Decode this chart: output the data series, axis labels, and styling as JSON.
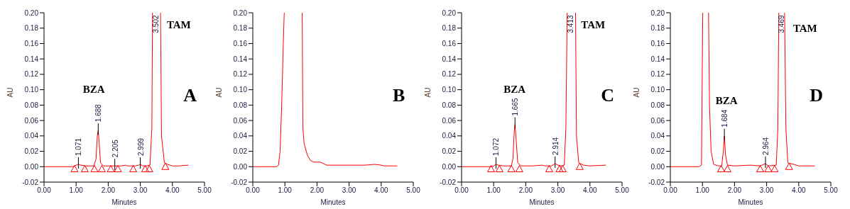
{
  "chart_data": [
    {
      "type": "line",
      "xlabel": "Minutes",
      "ylabel": "AU",
      "xlim": [
        0,
        5
      ],
      "ylim": [
        -0.02,
        0.2
      ],
      "xticks": [
        {
          "value": 0,
          "label": "0.00"
        },
        {
          "value": 1,
          "label": "1.00"
        },
        {
          "value": 2,
          "label": "2.00"
        },
        {
          "value": 3,
          "label": "3.00"
        },
        {
          "value": 4,
          "label": "4.00"
        },
        {
          "value": 5,
          "label": "5.00"
        }
      ],
      "yticks": [
        {
          "value": -0.02,
          "label": "-0.02"
        },
        {
          "value": 0,
          "label": "0.00"
        },
        {
          "value": 0.02,
          "label": "0.02"
        },
        {
          "value": 0.04,
          "label": "0.04"
        },
        {
          "value": 0.06,
          "label": "0.06"
        },
        {
          "value": 0.08,
          "label": "0.08"
        },
        {
          "value": 0.1,
          "label": "0.10"
        },
        {
          "value": 0.12,
          "label": "0.12"
        },
        {
          "value": 0.14,
          "label": "0.14"
        },
        {
          "value": 0.16,
          "label": "0.16"
        },
        {
          "value": 0.18,
          "label": "0.18"
        },
        {
          "value": 0.2,
          "label": "0.20"
        }
      ],
      "grid": false,
      "line_style": "solid",
      "marker": "none",
      "series": [
        {
          "color": "#ff0000",
          "x": [
            0,
            0.9,
            1.0,
            1.071,
            1.15,
            1.3,
            1.55,
            1.62,
            1.66,
            1.688,
            1.72,
            1.76,
            1.85,
            2.0,
            2.205,
            2.4,
            2.55,
            2.6,
            2.7,
            2.85,
            2.95,
            2.999,
            3.08,
            3.2,
            3.3,
            3.36,
            3.38,
            3.502,
            3.63,
            3.66,
            3.75,
            3.85,
            4.0,
            4.2,
            4.5
          ],
          "values": [
            0,
            0,
            0.002,
            0.003,
            0.002,
            0.001,
            0.001,
            0.01,
            0.04,
            0.047,
            0.03,
            0.005,
            0.001,
            0.001,
            0.001,
            0.001,
            0.002,
            0.001,
            0.001,
            0.001,
            0.002,
            0.003,
            0.001,
            0.001,
            0.002,
            0.05,
            0.2,
            null,
            0.2,
            0.04,
            0.005,
            0.003,
            0.001,
            0.001,
            0.002
          ]
        },
        {
          "type": "scatter",
          "color": "#ff0000",
          "marker": "triangle",
          "x": [
            0.95,
            1.27,
            1.57,
            1.8,
            2.08,
            2.3,
            2.78,
            3.15,
            3.28,
            3.78
          ],
          "values": [
            -0.003,
            -0.003,
            -0.003,
            -0.003,
            -0.003,
            -0.003,
            -0.003,
            -0.003,
            -0.003,
            0
          ]
        }
      ],
      "annotations": [
        {
          "text": "1.071",
          "x": 1.071,
          "y": 0.003
        },
        {
          "text": "1.688",
          "x": 1.688,
          "y": 0.047
        },
        {
          "text": "2.205",
          "x": 2.205,
          "y": 0.001
        },
        {
          "text": "2.999",
          "x": 2.999,
          "y": 0.003
        },
        "3.502",
        "BZA",
        "TAM",
        "A"
      ]
    },
    {
      "type": "line",
      "xlabel": "Minutes",
      "ylabel": "AU",
      "xlim": [
        0,
        5
      ],
      "ylim": [
        -0.02,
        0.2
      ],
      "xticks": [
        {
          "value": 0,
          "label": "0.00"
        },
        {
          "value": 1,
          "label": "1.00"
        },
        {
          "value": 2,
          "label": "2.00"
        },
        {
          "value": 3,
          "label": "3.00"
        },
        {
          "value": 4,
          "label": "4.00"
        },
        {
          "value": 5,
          "label": "5.00"
        }
      ],
      "yticks": [
        {
          "value": -0.02,
          "label": "-0.02"
        },
        {
          "value": 0,
          "label": "0.00"
        },
        {
          "value": 0.02,
          "label": "0.02"
        },
        {
          "value": 0.04,
          "label": "0.04"
        },
        {
          "value": 0.06,
          "label": "0.06"
        },
        {
          "value": 0.08,
          "label": "0.08"
        },
        {
          "value": 0.1,
          "label": "0.10"
        },
        {
          "value": 0.12,
          "label": "0.12"
        },
        {
          "value": 0.14,
          "label": "0.14"
        },
        {
          "value": 0.16,
          "label": "0.16"
        },
        {
          "value": 0.18,
          "label": "0.18"
        },
        {
          "value": 0.2,
          "label": "0.20"
        }
      ],
      "grid": false,
      "line_style": "solid",
      "marker": "none",
      "series": [
        {
          "color": "#ff0000",
          "x": [
            0,
            0.75,
            0.8,
            0.85,
            0.9,
            0.95,
            0.98,
            1.25,
            1.54,
            1.56,
            1.6,
            1.7,
            1.8,
            1.9,
            2.0,
            2.1,
            2.2,
            2.3,
            2.5,
            3.0,
            3.5,
            3.8,
            4.0,
            4.1,
            4.5
          ],
          "values": [
            0,
            0,
            0.002,
            0.02,
            0.08,
            0.16,
            0.2,
            null,
            0.2,
            0.05,
            0.03,
            0.015,
            0.008,
            0.006,
            0.006,
            0.006,
            0.004,
            0.002,
            0.002,
            0.002,
            0.002,
            0.003,
            0.002,
            0.001,
            0.001
          ]
        }
      ],
      "annotations": [
        "B"
      ]
    },
    {
      "type": "line",
      "xlabel": "Minutes",
      "ylabel": "AU",
      "xlim": [
        0,
        5
      ],
      "ylim": [
        -0.02,
        0.2
      ],
      "xticks": [
        {
          "value": 0,
          "label": "0.00"
        },
        {
          "value": 1,
          "label": "1.00"
        },
        {
          "value": 2,
          "label": "2.00"
        },
        {
          "value": 3,
          "label": "3.00"
        },
        {
          "value": 4,
          "label": "4.00"
        },
        {
          "value": 5,
          "label": "5.00"
        }
      ],
      "yticks": [
        {
          "value": -0.02,
          "label": "-0.02"
        },
        {
          "value": 0,
          "label": "0.00"
        },
        {
          "value": 0.02,
          "label": "0.02"
        },
        {
          "value": 0.04,
          "label": "0.04"
        },
        {
          "value": 0.06,
          "label": "0.06"
        },
        {
          "value": 0.08,
          "label": "0.08"
        },
        {
          "value": 0.1,
          "label": "0.10"
        },
        {
          "value": 0.12,
          "label": "0.12"
        },
        {
          "value": 0.14,
          "label": "0.14"
        },
        {
          "value": 0.16,
          "label": "0.16"
        },
        {
          "value": 0.18,
          "label": "0.18"
        },
        {
          "value": 0.2,
          "label": "0.20"
        }
      ],
      "grid": false,
      "line_style": "solid",
      "marker": "none",
      "series": [
        {
          "color": "#ff0000",
          "x": [
            0,
            0.9,
            1.0,
            1.072,
            1.15,
            1.3,
            1.55,
            1.6,
            1.64,
            1.665,
            1.7,
            1.75,
            1.85,
            2.0,
            2.2,
            2.5,
            2.6,
            2.8,
            2.914,
            3.0,
            3.1,
            3.2,
            3.25,
            3.29,
            3.413,
            3.55,
            3.58,
            3.65,
            3.8,
            4.0,
            4.5
          ],
          "values": [
            0,
            0,
            0.001,
            0.003,
            0.002,
            0.001,
            0.001,
            0.01,
            0.045,
            0.055,
            0.035,
            0.005,
            0.001,
            0.001,
            0.001,
            0.002,
            0.001,
            0.001,
            0.004,
            0.002,
            0.001,
            0.002,
            0.05,
            0.2,
            null,
            0.2,
            0.04,
            0.005,
            0.002,
            0.001,
            0.002
          ]
        },
        {
          "type": "scatter",
          "color": "#ff0000",
          "marker": "triangle",
          "x": [
            0.92,
            1.18,
            1.55,
            1.8,
            2.73,
            3.05,
            3.15,
            3.68
          ],
          "values": [
            -0.003,
            -0.003,
            -0.003,
            -0.003,
            -0.003,
            -0.003,
            -0.003,
            0
          ]
        }
      ],
      "annotations": [
        {
          "text": "1.072",
          "x": 1.072,
          "y": 0.003
        },
        {
          "text": "1.665",
          "x": 1.665,
          "y": 0.055
        },
        {
          "text": "2.914",
          "x": 2.914,
          "y": 0.004
        },
        "3.413",
        "BZA",
        "TAM",
        "C"
      ]
    },
    {
      "type": "line",
      "xlabel": "Minutes",
      "ylabel": "AU",
      "xlim": [
        0,
        5
      ],
      "ylim": [
        -0.02,
        0.2
      ],
      "xticks": [
        {
          "value": 0,
          "label": "0.00"
        },
        {
          "value": 1,
          "label": "1.00"
        },
        {
          "value": 2,
          "label": "2.00"
        },
        {
          "value": 3,
          "label": "3.00"
        },
        {
          "value": 4,
          "label": "4.00"
        },
        {
          "value": 5,
          "label": "5.00"
        }
      ],
      "yticks": [
        {
          "value": -0.02,
          "label": "-0.02"
        },
        {
          "value": 0,
          "label": "0.00"
        },
        {
          "value": 0.02,
          "label": "0.02"
        },
        {
          "value": 0.04,
          "label": "0.04"
        },
        {
          "value": 0.06,
          "label": "0.06"
        },
        {
          "value": 0.08,
          "label": "0.08"
        },
        {
          "value": 0.1,
          "label": "0.10"
        },
        {
          "value": 0.12,
          "label": "0.12"
        },
        {
          "value": 0.14,
          "label": "0.14"
        },
        {
          "value": 0.16,
          "label": "0.16"
        },
        {
          "value": 0.18,
          "label": "0.18"
        },
        {
          "value": 0.2,
          "label": "0.20"
        }
      ],
      "grid": false,
      "line_style": "solid",
      "marker": "none",
      "series": [
        {
          "color": "#ff0000",
          "x": [
            0,
            0.9,
            0.97,
            0.99,
            1.01,
            1.1,
            1.19,
            1.22,
            1.27,
            1.35,
            1.5,
            1.6,
            1.65,
            1.684,
            1.72,
            1.78,
            2.0,
            2.5,
            2.8,
            2.964,
            3.05,
            3.3,
            3.35,
            3.38,
            3.469,
            3.56,
            3.6,
            3.66,
            3.85,
            4.0,
            4.5
          ],
          "values": [
            0,
            0,
            0.002,
            0.1,
            0.2,
            null,
            0.2,
            0.08,
            0.02,
            0.003,
            0.001,
            0.001,
            0.02,
            0.04,
            0.015,
            0.002,
            0.001,
            0.002,
            0.001,
            0.004,
            0.001,
            0.002,
            0.05,
            0.2,
            null,
            0.2,
            0.05,
            0.005,
            0.003,
            0.001,
            0.001
          ]
        },
        {
          "type": "scatter",
          "color": "#ff0000",
          "marker": "triangle",
          "x": [
            1.58,
            1.78,
            2.8,
            3.05,
            3.25,
            3.7
          ],
          "values": [
            -0.003,
            -0.003,
            -0.003,
            -0.003,
            -0.003,
            0
          ]
        }
      ],
      "annotations": [
        {
          "text": "1.684",
          "x": 1.684,
          "y": 0.04
        },
        {
          "text": "2.964",
          "x": 2.964,
          "y": 0.004
        },
        "3.469",
        "BZA",
        "TAM",
        "D"
      ]
    }
  ]
}
